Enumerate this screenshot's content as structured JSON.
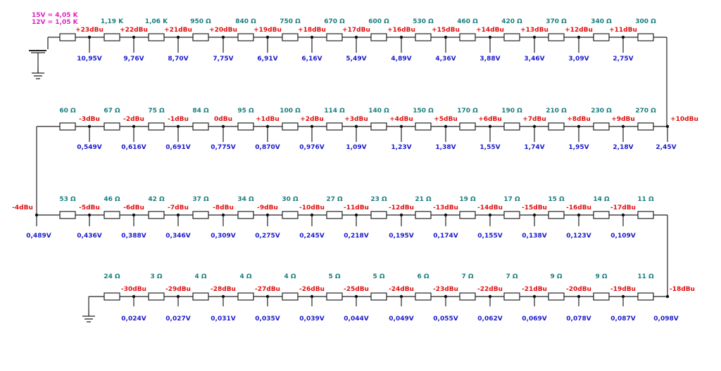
{
  "header_note": {
    "line1": "15V = 4,05 K",
    "line2": "12V = 1,05 K"
  },
  "colors": {
    "resistor_label": "#1a7d7d",
    "db_label": "#e01010",
    "voltage_label": "#1a1acc",
    "note": "#e020c0",
    "wire": "#222222"
  },
  "icons": [
    "ground-icon",
    "resistor-icon",
    "junction-dot-icon"
  ],
  "rows": [
    {
      "resistors": [
        "",
        "1,19 K",
        "1,06 K",
        "950 Ω",
        "840 Ω",
        "750 Ω",
        "670 Ω",
        "600 Ω",
        "530 Ω",
        "460 Ω",
        "420 Ω",
        "370 Ω",
        "340 Ω",
        "300 Ω"
      ],
      "nodes": [
        {
          "db": "+23dBu",
          "v": "10,95V"
        },
        {
          "db": "+22dBu",
          "v": "9,76V"
        },
        {
          "db": "+21dBu",
          "v": "8,70V"
        },
        {
          "db": "+20dBu",
          "v": "7,75V"
        },
        {
          "db": "+19dBu",
          "v": "6,91V"
        },
        {
          "db": "+18dBu",
          "v": "6,16V"
        },
        {
          "db": "+17dBu",
          "v": "5,49V"
        },
        {
          "db": "+16dBu",
          "v": "4,89V"
        },
        {
          "db": "+15dBu",
          "v": "4,36V"
        },
        {
          "db": "+14dBu",
          "v": "3,88V"
        },
        {
          "db": "+13dBu",
          "v": "3,46V"
        },
        {
          "db": "+12dBu",
          "v": "3,09V"
        },
        {
          "db": "+11dBu",
          "v": "2,75V"
        }
      ]
    },
    {
      "resistors": [
        "60 Ω",
        "67 Ω",
        "75 Ω",
        "84 Ω",
        "95 Ω",
        "100 Ω",
        "114 Ω",
        "140 Ω",
        "150 Ω",
        "170 Ω",
        "190 Ω",
        "210 Ω",
        "230 Ω",
        "270 Ω"
      ],
      "nodes": [
        {
          "db": "-3dBu",
          "v": "0,549V"
        },
        {
          "db": "-2dBu",
          "v": "0,616V"
        },
        {
          "db": "-1dBu",
          "v": "0,691V"
        },
        {
          "db": "0dBu",
          "v": "0,775V"
        },
        {
          "db": "+1dBu",
          "v": "0,870V"
        },
        {
          "db": "+2dBu",
          "v": "0,976V"
        },
        {
          "db": "+3dBu",
          "v": "1,09V"
        },
        {
          "db": "+4dBu",
          "v": "1,23V"
        },
        {
          "db": "+5dBu",
          "v": "1,38V"
        },
        {
          "db": "+6dBu",
          "v": "1,55V"
        },
        {
          "db": "+7dBu",
          "v": "1,74V"
        },
        {
          "db": "+8dBu",
          "v": "1,95V"
        },
        {
          "db": "+9dBu",
          "v": "2,18V"
        }
      ],
      "right_end": {
        "db": "+10dBu",
        "v": "2,45V"
      }
    },
    {
      "resistors": [
        "53 Ω",
        "46 Ω",
        "42 Ω",
        "37 Ω",
        "34 Ω",
        "30 Ω",
        "27 Ω",
        "23 Ω",
        "21 Ω",
        "19 Ω",
        "17 Ω",
        "15 Ω",
        "14 Ω",
        "11 Ω"
      ],
      "left_end": {
        "db": "-4dBu",
        "v": "0,489V"
      },
      "nodes": [
        {
          "db": "-5dBu",
          "v": "0,436V"
        },
        {
          "db": "-6dBu",
          "v": "0,388V"
        },
        {
          "db": "-7dBu",
          "v": "0,346V"
        },
        {
          "db": "-8dBu",
          "v": "0,309V"
        },
        {
          "db": "-9dBu",
          "v": "0,275V"
        },
        {
          "db": "-10dBu",
          "v": "0,245V"
        },
        {
          "db": "-11dBu",
          "v": "0,218V"
        },
        {
          "db": "-12dBu",
          "v": "0,195V"
        },
        {
          "db": "-13dBu",
          "v": "0,174V"
        },
        {
          "db": "-14dBu",
          "v": "0,155V"
        },
        {
          "db": "-15dBu",
          "v": "0,138V"
        },
        {
          "db": "-16dBu",
          "v": "0,123V"
        },
        {
          "db": "-17dBu",
          "v": "0,109V"
        }
      ]
    },
    {
      "resistors": [
        "24 Ω",
        "3 Ω",
        "4 Ω",
        "4 Ω",
        "4 Ω",
        "5 Ω",
        "5 Ω",
        "6 Ω",
        "7 Ω",
        "7 Ω",
        "9 Ω",
        "9 Ω",
        "11 Ω"
      ],
      "nodes": [
        {
          "db": "-30dBu",
          "v": "0,024V"
        },
        {
          "db": "-29dBu",
          "v": "0,027V"
        },
        {
          "db": "-28dBu",
          "v": "0,031V"
        },
        {
          "db": "-27dBu",
          "v": "0,035V"
        },
        {
          "db": "-26dBu",
          "v": "0,039V"
        },
        {
          "db": "-25dBu",
          "v": "0,044V"
        },
        {
          "db": "-24dBu",
          "v": "0,049V"
        },
        {
          "db": "-23dBu",
          "v": "0,055V"
        },
        {
          "db": "-22dBu",
          "v": "0,062V"
        },
        {
          "db": "-21dBu",
          "v": "0,069V"
        },
        {
          "db": "-20dBu",
          "v": "0,078V"
        },
        {
          "db": "-19dBu",
          "v": "0,087V"
        }
      ],
      "right_end": {
        "db": "-18dBu",
        "v": "0,098V"
      }
    }
  ]
}
